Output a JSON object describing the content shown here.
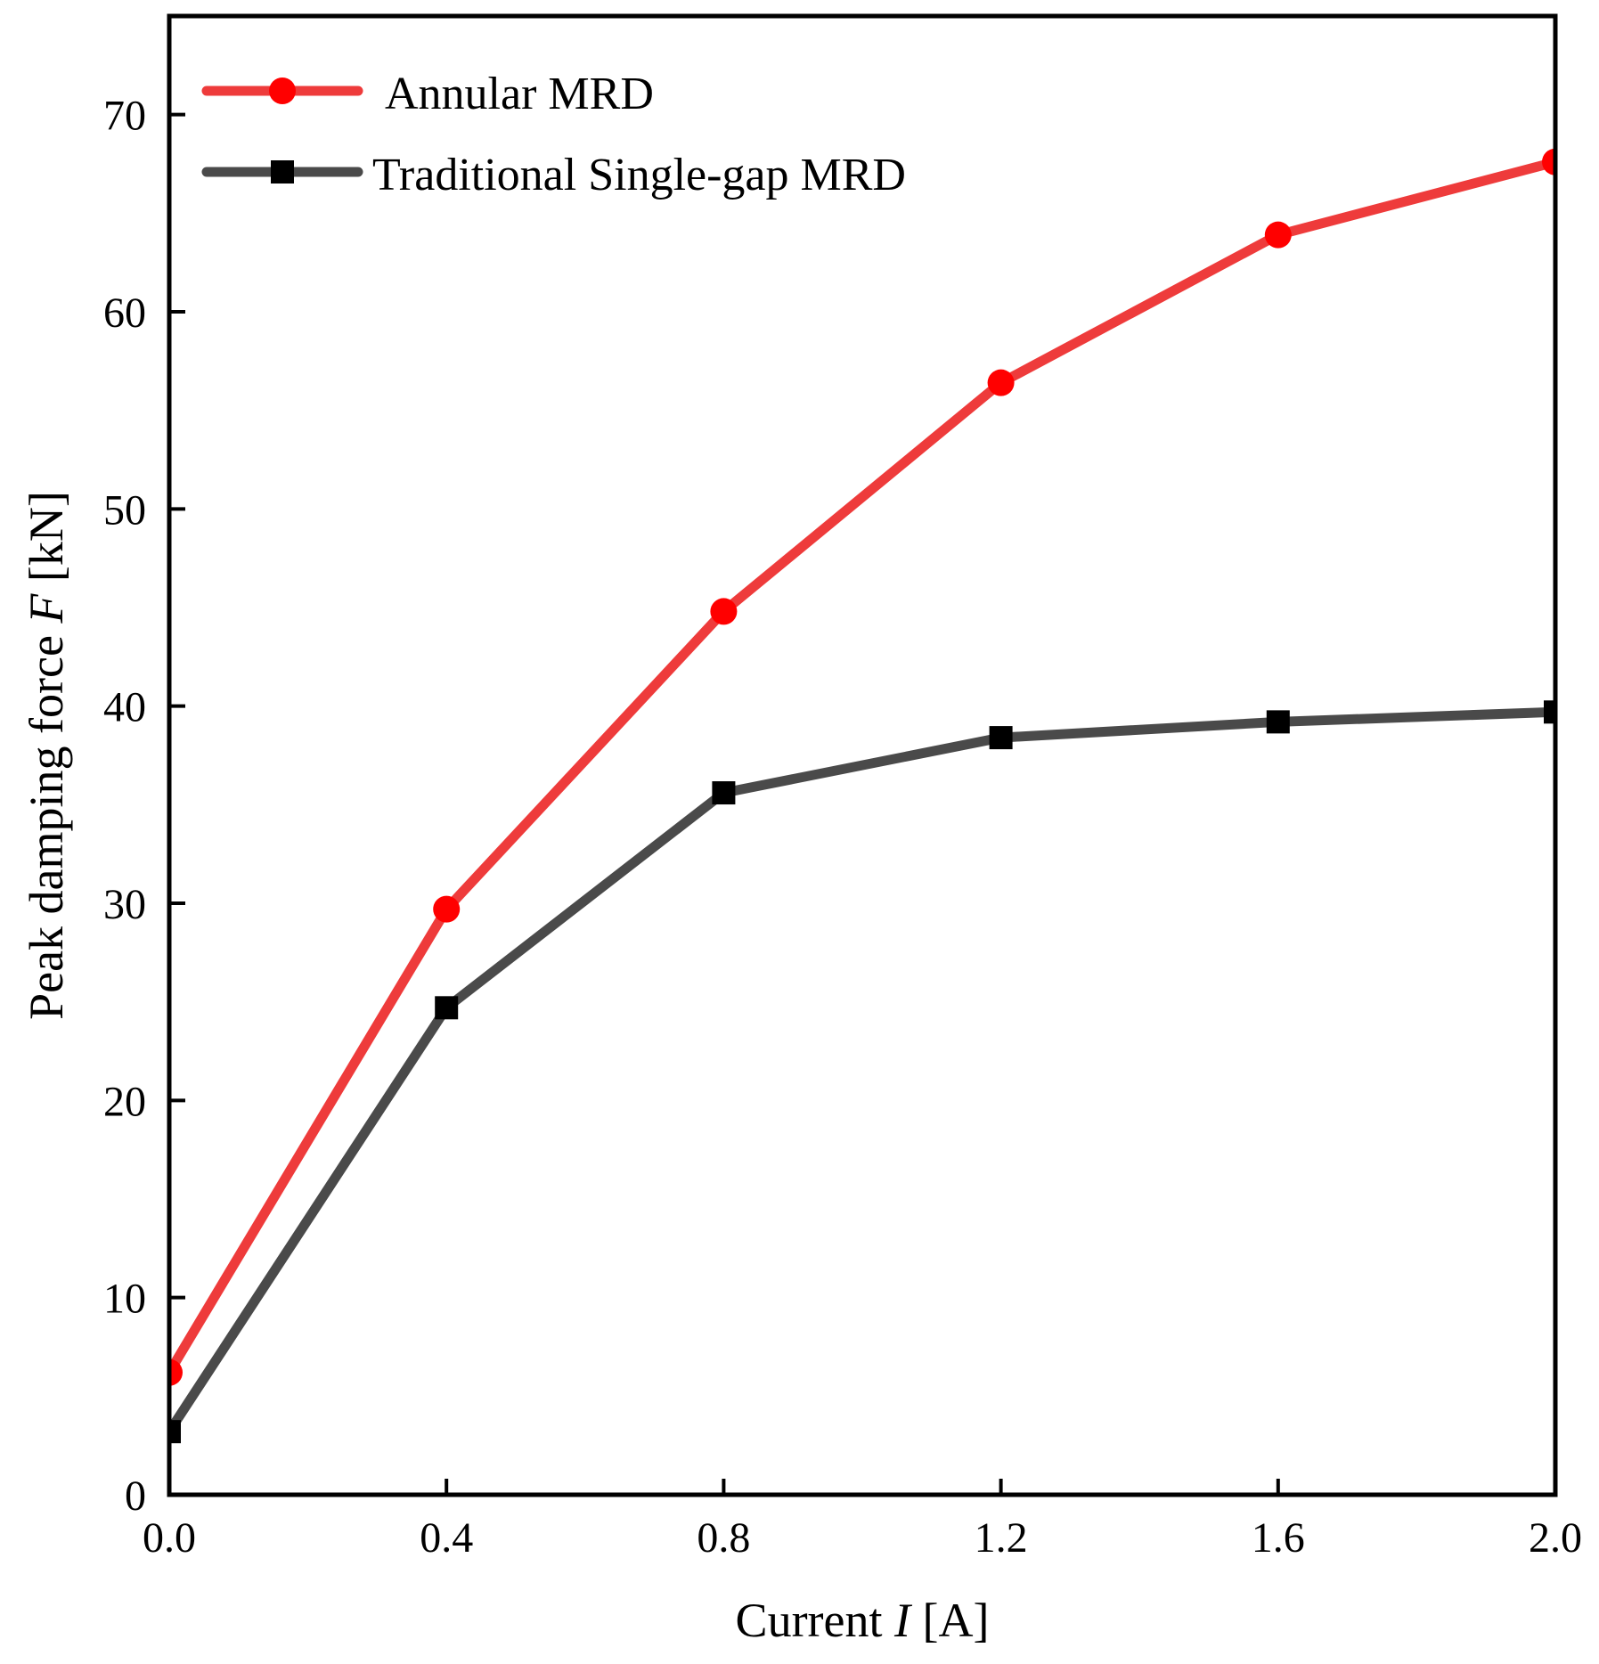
{
  "chart_data": {
    "type": "line",
    "title": "",
    "xlabel": "Current I [A]",
    "xlabel_parts": [
      "Current ",
      "I",
      " [A]"
    ],
    "ylabel": "Peak damping force F [kN]",
    "ylabel_parts": [
      "Peak damping force ",
      "F",
      " [kN]"
    ],
    "xlim": [
      0.0,
      2.0
    ],
    "ylim": [
      0,
      75
    ],
    "xticks": [
      0.0,
      0.4,
      0.8,
      1.2,
      1.6,
      2.0
    ],
    "xtick_labels": [
      "0.0",
      "0.4",
      "0.8",
      "1.2",
      "1.6",
      "2.0"
    ],
    "yticks": [
      0,
      10,
      20,
      30,
      40,
      50,
      60,
      70
    ],
    "ytick_labels": [
      "0",
      "10",
      "20",
      "30",
      "40",
      "50",
      "60",
      "70"
    ],
    "grid": false,
    "legend_position": "top-left",
    "x": [
      0.0,
      0.4,
      0.8,
      1.2,
      1.6,
      2.0
    ],
    "series": [
      {
        "name": "Annular MRD",
        "values": [
          6.2,
          29.7,
          44.8,
          56.4,
          63.9,
          67.6
        ],
        "color": "#ee3b3b",
        "marker_color": "#ff0000",
        "marker": "circle"
      },
      {
        "name": "Traditional Single-gap MRD",
        "values": [
          3.2,
          24.7,
          35.6,
          38.4,
          39.2,
          39.7
        ],
        "color": "#4a4a4a",
        "marker_color": "#000000",
        "marker": "square"
      }
    ]
  }
}
